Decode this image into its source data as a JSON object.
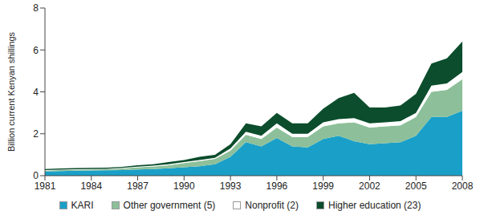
{
  "chart_data": {
    "type": "area",
    "stacked": true,
    "y_label": "Billion current Kenyan shillings",
    "x": [
      1981,
      1982,
      1983,
      1984,
      1985,
      1986,
      1987,
      1988,
      1989,
      1990,
      1991,
      1992,
      1993,
      1994,
      1995,
      1996,
      1997,
      1998,
      1999,
      2000,
      2001,
      2002,
      2003,
      2004,
      2005,
      2006,
      2007,
      2008
    ],
    "xlim": [
      1981,
      2008
    ],
    "xticks": [
      1981,
      1984,
      1987,
      1990,
      1993,
      1996,
      1999,
      2002,
      2005,
      2008
    ],
    "ylim": [
      0,
      8
    ],
    "yticks": [
      0,
      2,
      4,
      6,
      8
    ],
    "grid": false,
    "legend": "bottom",
    "series": [
      {
        "name": "KARI",
        "color": "#1aa0c8",
        "values": [
          0.2,
          0.22,
          0.24,
          0.25,
          0.26,
          0.27,
          0.3,
          0.32,
          0.35,
          0.4,
          0.45,
          0.55,
          0.9,
          1.6,
          1.4,
          1.8,
          1.4,
          1.35,
          1.75,
          1.9,
          1.65,
          1.5,
          1.55,
          1.6,
          1.9,
          2.8,
          2.8,
          3.1
        ]
      },
      {
        "name": "Other government (5)",
        "color": "#8dc09a",
        "values": [
          0.05,
          0.05,
          0.05,
          0.05,
          0.05,
          0.07,
          0.1,
          0.12,
          0.15,
          0.2,
          0.25,
          0.25,
          0.3,
          0.35,
          0.35,
          0.5,
          0.45,
          0.5,
          0.6,
          0.6,
          0.9,
          0.8,
          0.8,
          0.8,
          0.9,
          1.2,
          1.3,
          1.5
        ]
      },
      {
        "name": "Nonprofit (2)",
        "color": "#ffffff",
        "values": [
          0.02,
          0.02,
          0.02,
          0.02,
          0.02,
          0.03,
          0.03,
          0.04,
          0.05,
          0.05,
          0.05,
          0.05,
          0.1,
          0.15,
          0.15,
          0.2,
          0.15,
          0.15,
          0.2,
          0.2,
          0.2,
          0.2,
          0.2,
          0.2,
          0.2,
          0.3,
          0.3,
          0.35
        ]
      },
      {
        "name": "Higher education (23)",
        "color": "#0b4d2c",
        "values": [
          0.05,
          0.05,
          0.05,
          0.05,
          0.05,
          0.05,
          0.07,
          0.07,
          0.1,
          0.1,
          0.15,
          0.15,
          0.2,
          0.4,
          0.45,
          0.5,
          0.5,
          0.5,
          0.65,
          1.0,
          1.2,
          0.75,
          0.7,
          0.75,
          0.9,
          1.05,
          1.2,
          1.45
        ]
      }
    ]
  }
}
